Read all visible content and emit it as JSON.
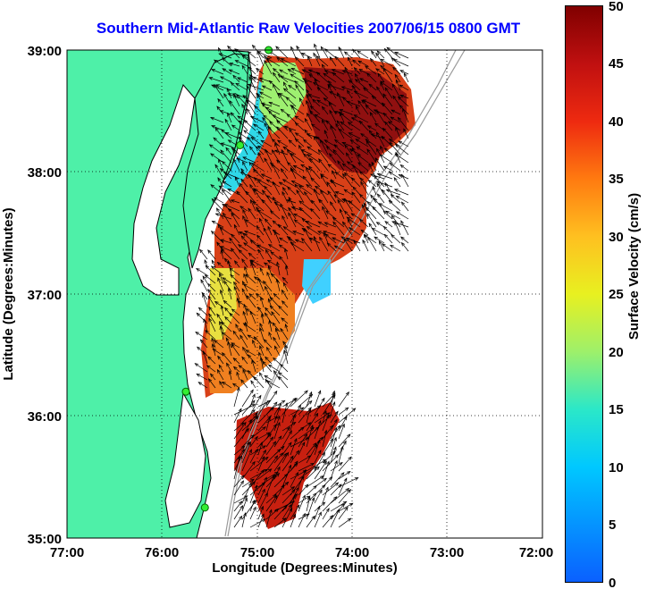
{
  "title": "Southern Mid-Atlantic Raw Velocities 2007/06/15 0800 GMT",
  "xlabel": "Longitude (Degrees:Minutes)",
  "ylabel": "Latitude (Degrees:Minutes)",
  "colorbar_label": "Surface Velocity (cm/s)",
  "x_ticks": [
    "77:00",
    "76:00",
    "75:00",
    "74:00",
    "73:00",
    "72:00"
  ],
  "y_ticks": [
    "39:00",
    "38:00",
    "37:00",
    "36:00",
    "35:00"
  ],
  "colorbar_ticks": [
    "50",
    "45",
    "40",
    "35",
    "30",
    "25",
    "20",
    "15",
    "10",
    "5",
    "0"
  ],
  "colors": {
    "title": "#0000ff",
    "land": "#4ef0a8",
    "coast": "#000000",
    "vectors": "#000000"
  },
  "map": {
    "lon_range": [
      -77,
      -72
    ],
    "lat_range": [
      35,
      39
    ],
    "colorbar_range": [
      0,
      50
    ],
    "grid": "dotted",
    "stations": [
      [
        -74.88,
        39.0
      ],
      [
        -75.18,
        38.22
      ],
      [
        -75.75,
        36.2
      ],
      [
        -75.55,
        35.25
      ]
    ]
  }
}
